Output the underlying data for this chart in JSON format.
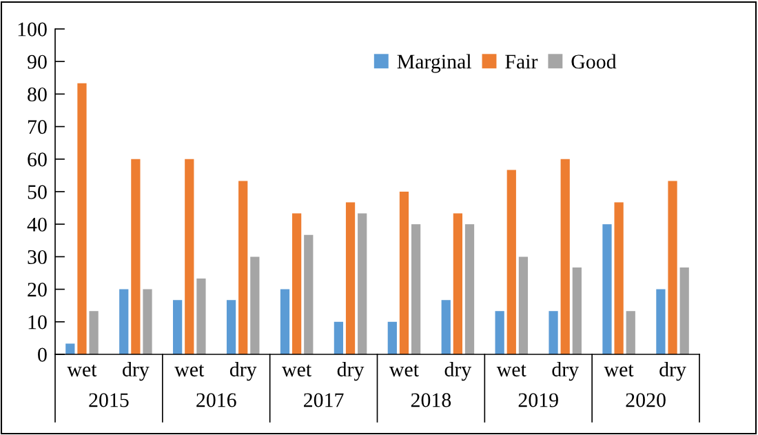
{
  "chart_data": {
    "type": "bar",
    "categories": [
      "wet",
      "dry",
      "wet",
      "dry",
      "wet",
      "dry",
      "wet",
      "dry",
      "wet",
      "dry",
      "wet",
      "dry"
    ],
    "series": [
      {
        "name": "Marginal",
        "color": "#5b9bd5",
        "values": [
          3.3,
          20,
          16.7,
          16.7,
          20,
          10,
          10,
          16.7,
          13.3,
          13.3,
          40,
          20
        ]
      },
      {
        "name": "Fair",
        "color": "#ed7d31",
        "values": [
          83.3,
          60,
          60,
          53.3,
          43.3,
          46.7,
          50,
          43.3,
          56.7,
          60,
          46.7,
          53.3
        ]
      },
      {
        "name": "Good",
        "color": "#a5a5a5",
        "values": [
          13.3,
          20,
          23.3,
          30,
          36.7,
          43.3,
          40,
          40,
          30,
          26.7,
          13.3,
          26.7
        ]
      }
    ],
    "ylim": [
      0,
      100
    ],
    "yticks": [
      0,
      10,
      20,
      30,
      40,
      50,
      60,
      70,
      80,
      90,
      100
    ],
    "legend": "top right",
    "annotations": [
      "2015",
      "2016",
      "2017",
      "2018",
      "2019",
      "2020"
    ]
  }
}
